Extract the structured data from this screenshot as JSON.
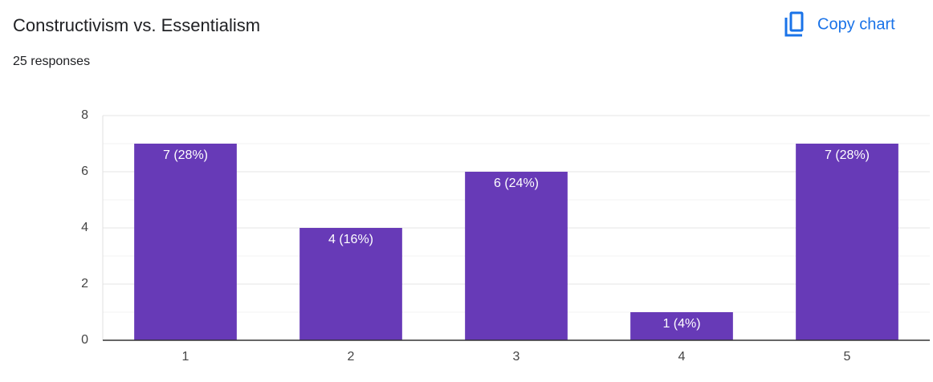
{
  "header": {
    "copy_button": "Copy chart"
  },
  "chart_data": {
    "type": "bar",
    "title": "Constructivism vs. Essentialism",
    "subtitle": "25 responses",
    "categories": [
      "1",
      "2",
      "3",
      "4",
      "5"
    ],
    "values": [
      7,
      4,
      6,
      1,
      7
    ],
    "value_labels": [
      "7 (28%)",
      "4 (16%)",
      "6 (24%)",
      "1 (4%)",
      "7 (28%)"
    ],
    "color": "#673ab7",
    "ylim": [
      0,
      8
    ],
    "yticks": [
      0,
      2,
      4,
      6,
      8
    ],
    "minor_yticks": [
      1,
      3,
      5,
      7
    ],
    "grid": true
  }
}
